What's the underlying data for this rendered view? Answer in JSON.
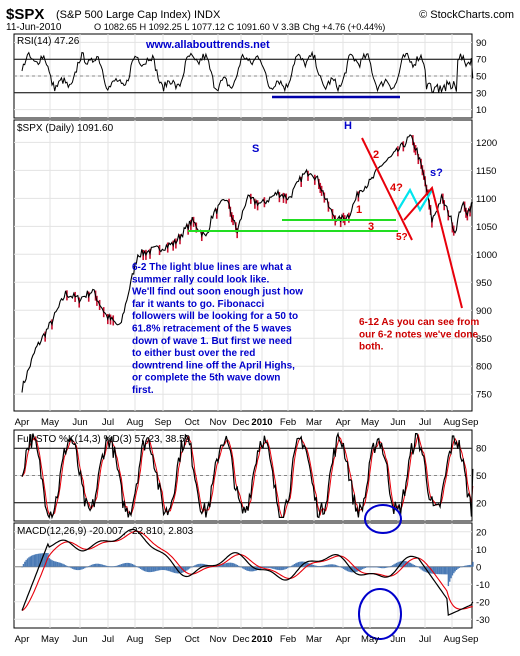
{
  "header": {
    "symbol": "$SPX",
    "name": "(S&P 500 Large Cap Index) INDX",
    "copyright": "© StockCharts.com",
    "date": "11-Jun-2010",
    "ohlc": "O 1082.65  H 1092.25  L 1077.12  C 1091.60  V 3.3B  Chg +4.76 (+0.44%)",
    "chg_arrow": "▲"
  },
  "rsi": {
    "label": "RSI(14) 47.26",
    "watermark": "www.allabouttrends.net",
    "ticks": [
      "90",
      "70",
      "50",
      "30",
      "10"
    ]
  },
  "price": {
    "label": "$SPX (Daily) 1091.60",
    "ticks": [
      "1200",
      "1150",
      "1100",
      "1050",
      "1000",
      "950",
      "900",
      "850",
      "800",
      "750"
    ],
    "annotations": {
      "H": "H",
      "S": "S",
      "s": "s?",
      "w1": "1",
      "w2": "2",
      "w3": "3",
      "w4": "4?",
      "w5": "5?"
    },
    "note1": [
      "6-2 The light blue lines are what a",
      "summer rally could look like.",
      "We'll find out soon enough just how",
      "far it wants to go. Fibonacci",
      "followers will be looking for a 50 to",
      "61.8% retracement of the 5 waves",
      "down of wave 1.  But first we need",
      "to either bust over the red",
      "downtrend line off the April Highs,",
      "or complete the 5th wave down",
      "first."
    ],
    "note2": [
      "6-12 As you can see from",
      "our 6-2 notes we've done",
      "both."
    ]
  },
  "sto": {
    "label": "Full STO %K(14,3) %D(3) 57.23, 38.59",
    "ticks": [
      "80",
      "50",
      "20"
    ]
  },
  "macd": {
    "label": "MACD(12,26,9) -20.007, -22.810, 2.803",
    "ticks": [
      "20",
      "10",
      "0",
      "-10",
      "-20",
      "-30"
    ]
  },
  "months_top": [
    "Apr",
    "May",
    "Jun",
    "Jul",
    "Aug",
    "Sep",
    "Oct",
    "Nov",
    "Dec",
    "2010",
    "Feb",
    "Mar",
    "Apr",
    "May",
    "Jun",
    "Jul",
    "Aug",
    "Sep"
  ],
  "months_bottom": [
    "Apr",
    "May",
    "Jun",
    "Jul",
    "Aug",
    "Sep",
    "Oct",
    "Nov",
    "Dec",
    "2010",
    "Feb",
    "Mar",
    "Apr",
    "May",
    "Jun",
    "Jul",
    "Aug",
    "Sep"
  ],
  "colors": {
    "price_line": "#000000",
    "down_bar": "#c8102e",
    "trend_red": "#e8000b",
    "support_green": "#22dd22",
    "rally_cyan": "#00e5ee",
    "note_blue": "#0000cc",
    "note_red": "#cc0000",
    "support_blue": "#0000aa",
    "macd_signal": "#e8000b",
    "hist": "#4a7ab5"
  },
  "chart_data": {
    "type": "line",
    "title": "$SPX (S&P 500 Large Cap Index) INDX",
    "x": [
      "2009-04",
      "2009-05",
      "2009-06",
      "2009-07",
      "2009-08",
      "2009-09",
      "2009-10",
      "2009-11",
      "2009-12",
      "2010-01",
      "2010-02",
      "2010-03",
      "2010-04",
      "2010-05",
      "2010-06"
    ],
    "series": [
      {
        "name": "$SPX (Daily)",
        "values": [
          760,
          870,
          920,
          890,
          1010,
          1050,
          1060,
          1100,
          1110,
          1140,
          1080,
          1160,
          1210,
          1100,
          1070
        ]
      }
    ],
    "price_ylim": [
      720,
      1240
    ],
    "rsi": {
      "value": 47.26,
      "ylim": [
        0,
        100
      ]
    },
    "full_sto": {
      "k": 57.23,
      "d": 38.59,
      "ylim": [
        0,
        100
      ]
    },
    "macd": {
      "macd": -20.007,
      "signal": -22.81,
      "histogram": 2.803,
      "ylim": [
        -35,
        25
      ]
    },
    "close": 1091.6,
    "open": 1082.65,
    "high": 1092.25,
    "low": 1077.12,
    "volume": "3.3B",
    "change": 4.76,
    "change_pct": 0.44
  }
}
